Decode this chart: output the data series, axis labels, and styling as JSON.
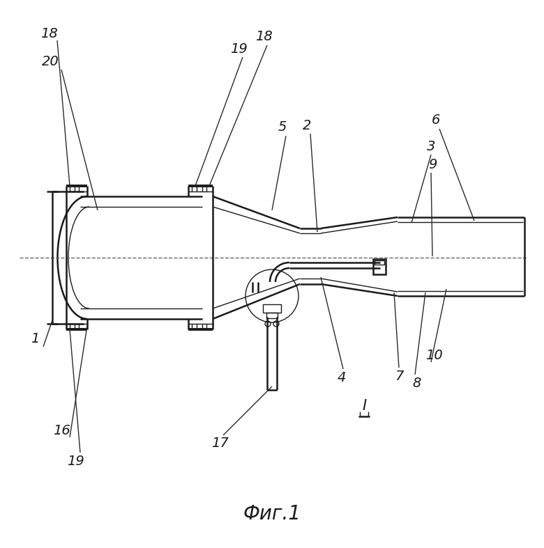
{
  "bg_color": "#ffffff",
  "line_color": "#1a1a1a",
  "title": "Фиг.1",
  "title_fontsize": 20,
  "lw_main": 1.8,
  "lw_thin": 1.0,
  "lw_thick": 2.8
}
